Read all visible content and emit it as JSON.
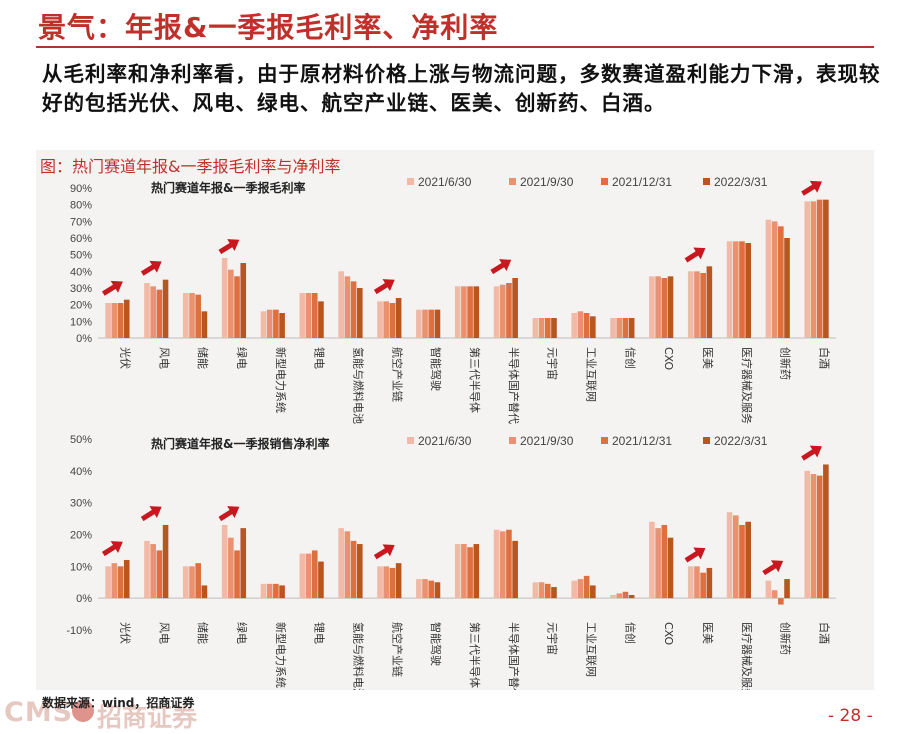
{
  "page": {
    "title": "景气：年报&一季报毛利率、净利率",
    "summary": "从毛利率和净利率看，由于原材料价格上涨与物流问题，多数赛道盈利能力下滑，表现较好的包括光伏、风电、绿电、航空产业链、医美、创新药、白酒。",
    "figure_caption": "图：热门赛道年报&一季报毛利率与净利率",
    "source": "数据来源：wind，招商证券",
    "logo_latin": "CMS",
    "logo_cn": "招商证券",
    "page_number": "- 28 -"
  },
  "colors": {
    "title": "#c0302b",
    "series": [
      "#f2b9a6",
      "#ea9270",
      "#de6f3e",
      "#b9551f"
    ],
    "arrow": "#c8171e"
  },
  "chart_data": [
    {
      "type": "bar",
      "title": "热门赛道年报&一季报毛利率",
      "categories": [
        "光伏",
        "风电",
        "储能",
        "绿电",
        "新型电力系统",
        "锂电",
        "氢能与燃料电池",
        "航空产业链",
        "智能驾驶",
        "第三代半导体",
        "半导体国产替代",
        "元宇宙",
        "工业互联网",
        "信创",
        "CXO",
        "医美",
        "医疗器械及服务",
        "创新药",
        "白酒"
      ],
      "series": [
        {
          "name": "2021/6/30",
          "values": [
            21,
            33,
            27,
            48,
            16,
            27,
            40,
            22,
            17,
            31,
            31,
            12,
            15,
            12,
            37,
            40,
            58,
            71,
            82
          ]
        },
        {
          "name": "2021/9/30",
          "values": [
            21,
            31,
            27,
            41,
            17,
            27,
            37,
            22,
            17,
            31,
            32,
            12,
            16,
            12,
            37,
            40,
            58,
            70,
            82
          ]
        },
        {
          "name": "2021/12/31",
          "values": [
            21,
            29,
            26,
            37,
            17,
            27,
            34,
            21,
            17,
            31,
            33,
            12,
            15,
            12,
            36,
            39,
            58,
            67,
            83
          ]
        },
        {
          "name": "2022/3/31",
          "values": [
            23,
            35,
            16,
            45,
            15,
            22,
            30,
            24,
            17,
            31,
            36,
            12,
            13,
            12,
            37,
            43,
            57,
            60,
            83
          ]
        }
      ],
      "ylim": [
        0,
        90
      ],
      "yticks": [
        "0%",
        "10%",
        "20%",
        "30%",
        "40%",
        "50%",
        "60%",
        "70%",
        "80%",
        "90%"
      ],
      "highlight_arrows": [
        "光伏",
        "风电",
        "绿电",
        "航空产业链",
        "半导体国产替代",
        "医美",
        "白酒"
      ],
      "legend": "top"
    },
    {
      "type": "bar",
      "title": "热门赛道年报&一季报销售净利率",
      "categories": [
        "光伏",
        "风电",
        "储能",
        "绿电",
        "新型电力系统",
        "锂电",
        "氢能与燃料电池",
        "航空产业链",
        "智能驾驶",
        "第三代半导体",
        "半导体国产替代",
        "元宇宙",
        "工业互联网",
        "信创",
        "CXO",
        "医美",
        "医疗器械及服务",
        "创新药",
        "白酒"
      ],
      "series": [
        {
          "name": "2021/6/30",
          "values": [
            10,
            18,
            10,
            23,
            4.5,
            14,
            22,
            10,
            6,
            17,
            21.5,
            5,
            5.5,
            1,
            24,
            10,
            27,
            5.5,
            40
          ]
        },
        {
          "name": "2021/9/30",
          "values": [
            11,
            17,
            10,
            19,
            4.5,
            14,
            21,
            10,
            6,
            17,
            21,
            5,
            6,
            1.5,
            22,
            10,
            26,
            2.5,
            39
          ]
        },
        {
          "name": "2021/12/31",
          "values": [
            10,
            15,
            11,
            15,
            4.5,
            15,
            18,
            9.5,
            5.5,
            16,
            21.5,
            4.5,
            7,
            2,
            23,
            8,
            23,
            -2,
            38.5
          ]
        },
        {
          "name": "2022/3/31",
          "values": [
            12,
            23,
            4,
            22,
            4,
            11.5,
            17,
            11,
            5,
            17,
            18,
            3.5,
            4,
            1,
            19,
            9.5,
            24,
            6,
            42
          ]
        }
      ],
      "ylim": [
        -10,
        50
      ],
      "yticks": [
        "-10%",
        "0%",
        "10%",
        "20%",
        "30%",
        "40%",
        "50%"
      ],
      "highlight_arrows": [
        "光伏",
        "风电",
        "绿电",
        "航空产业链",
        "医美",
        "创新药",
        "白酒"
      ],
      "legend": "top"
    }
  ]
}
